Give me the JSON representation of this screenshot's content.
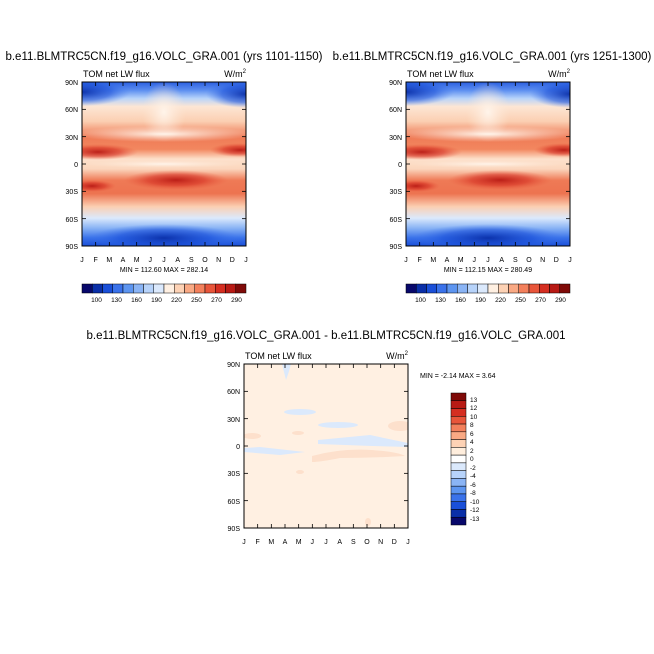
{
  "chart_data": [
    {
      "type": "heatmap",
      "title": "b.e11.BLMTRC5CN.f19_g16.VOLC_GRA.001 (yrs 1101-1150)",
      "left_string": "TOM net LW flux",
      "right_string": "W/m",
      "right_superscript": "2",
      "xlabels": [
        "J",
        "F",
        "M",
        "A",
        "M",
        "J",
        "J",
        "A",
        "S",
        "O",
        "N",
        "D",
        "J"
      ],
      "ylabels": [
        "90N",
        "60N",
        "30N",
        "0",
        "30S",
        "60S",
        "90S"
      ],
      "ylim": [
        -90,
        90
      ],
      "stats": "MIN = 112.60 MAX = 282.14",
      "min": 112.6,
      "max": 282.14,
      "colorbar": {
        "labels": [
          "100",
          "130",
          "160",
          "190",
          "220",
          "250",
          "270",
          "290"
        ],
        "colors": [
          "#08086b",
          "#0a2fa8",
          "#1a4fd8",
          "#3a72ea",
          "#5d95f0",
          "#8ab4f5",
          "#b7d3fa",
          "#dbe9fc",
          "#fff0e2",
          "#fdd2b5",
          "#f9a984",
          "#f3805c",
          "#e8553a",
          "#d52e21",
          "#b81a14",
          "#7f0a08"
        ]
      }
    },
    {
      "type": "heatmap",
      "title": "b.e11.BLMTRC5CN.f19_g16.VOLC_GRA.001 (yrs 1251-1300)",
      "left_string": "TOM net LW flux",
      "right_string": "W/m",
      "right_superscript": "2",
      "xlabels": [
        "J",
        "F",
        "M",
        "A",
        "M",
        "J",
        "J",
        "A",
        "S",
        "O",
        "N",
        "D",
        "J"
      ],
      "ylabels": [
        "90N",
        "60N",
        "30N",
        "0",
        "30S",
        "60S",
        "90S"
      ],
      "ylim": [
        -90,
        90
      ],
      "stats": "MIN = 112.15 MAX = 280.49",
      "min": 112.15,
      "max": 280.49,
      "colorbar": {
        "labels": [
          "100",
          "130",
          "160",
          "190",
          "220",
          "250",
          "270",
          "290"
        ],
        "colors": [
          "#08086b",
          "#0a2fa8",
          "#1a4fd8",
          "#3a72ea",
          "#5d95f0",
          "#8ab4f5",
          "#b7d3fa",
          "#dbe9fc",
          "#fff0e2",
          "#fdd2b5",
          "#f9a984",
          "#f3805c",
          "#e8553a",
          "#d52e21",
          "#b81a14",
          "#7f0a08"
        ]
      }
    },
    {
      "type": "heatmap",
      "title": "b.e11.BLMTRC5CN.f19_g16.VOLC_GRA.001 - b.e11.BLMTRC5CN.f19_g16.VOLC_GRA.001",
      "left_string": "TOM net LW flux",
      "right_string": "W/m",
      "right_superscript": "2",
      "xlabels": [
        "J",
        "F",
        "M",
        "A",
        "M",
        "J",
        "J",
        "A",
        "S",
        "O",
        "N",
        "D",
        "J"
      ],
      "ylabels": [
        "90N",
        "60N",
        "30N",
        "0",
        "30S",
        "60S",
        "90S"
      ],
      "ylim": [
        -90,
        90
      ],
      "stats": "MIN = -2.14 MAX = 3.64",
      "min": -2.14,
      "max": 3.64,
      "colorbar": {
        "labels": [
          "13",
          "12",
          "10",
          "8",
          "6",
          "4",
          "2",
          "0",
          "-2",
          "-4",
          "-6",
          "-8",
          "-10",
          "-12",
          "-13"
        ],
        "colors": [
          "#7f0a08",
          "#b81a14",
          "#d52e21",
          "#e8553a",
          "#f3805c",
          "#f9a984",
          "#fdd2b5",
          "#ffeedd",
          "#ffffff",
          "#dbe9fc",
          "#b7d3fa",
          "#8ab4f5",
          "#5d95f0",
          "#3a72ea",
          "#1a4fd8",
          "#0a2fa8",
          "#08086b"
        ]
      }
    }
  ]
}
